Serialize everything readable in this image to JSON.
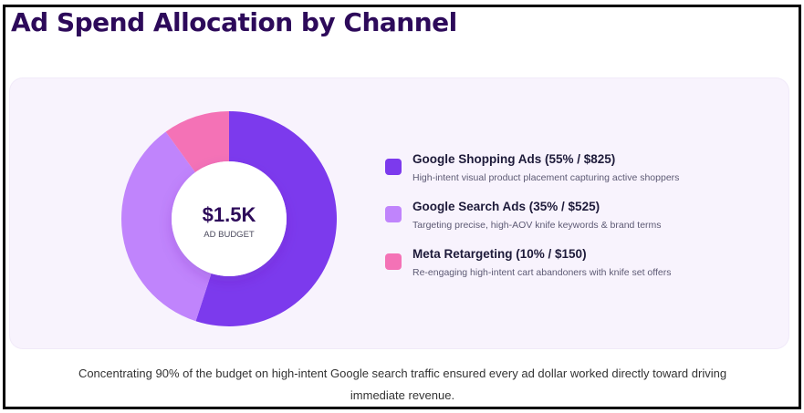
{
  "title": "Ad Spend Allocation by Channel",
  "chart_data": {
    "type": "pie",
    "center": {
      "value": "$1.5K",
      "label": "AD BUDGET"
    },
    "slices": [
      {
        "name": "Google Shopping Ads",
        "value": 55,
        "amount": 825,
        "color": "#7c3aed",
        "label": "Google Shopping Ads (55% / $825)",
        "description": "High-intent visual product placement capturing active shoppers"
      },
      {
        "name": "Google Search Ads",
        "value": 35,
        "amount": 525,
        "color": "#c084fc",
        "label": "Google Search Ads (35% / $525)",
        "description": "Targeting precise, high-AOV knife keywords & brand terms"
      },
      {
        "name": "Meta Retargeting",
        "value": 10,
        "amount": 150,
        "color": "#f472b6",
        "label": "Meta Retargeting (10% / $150)",
        "description": "Re-engaging high-intent cart abandoners with knife set offers"
      }
    ]
  },
  "caption": "Concentrating 90% of the budget on high-intent Google search traffic ensured every ad dollar worked directly toward driving immediate revenue."
}
